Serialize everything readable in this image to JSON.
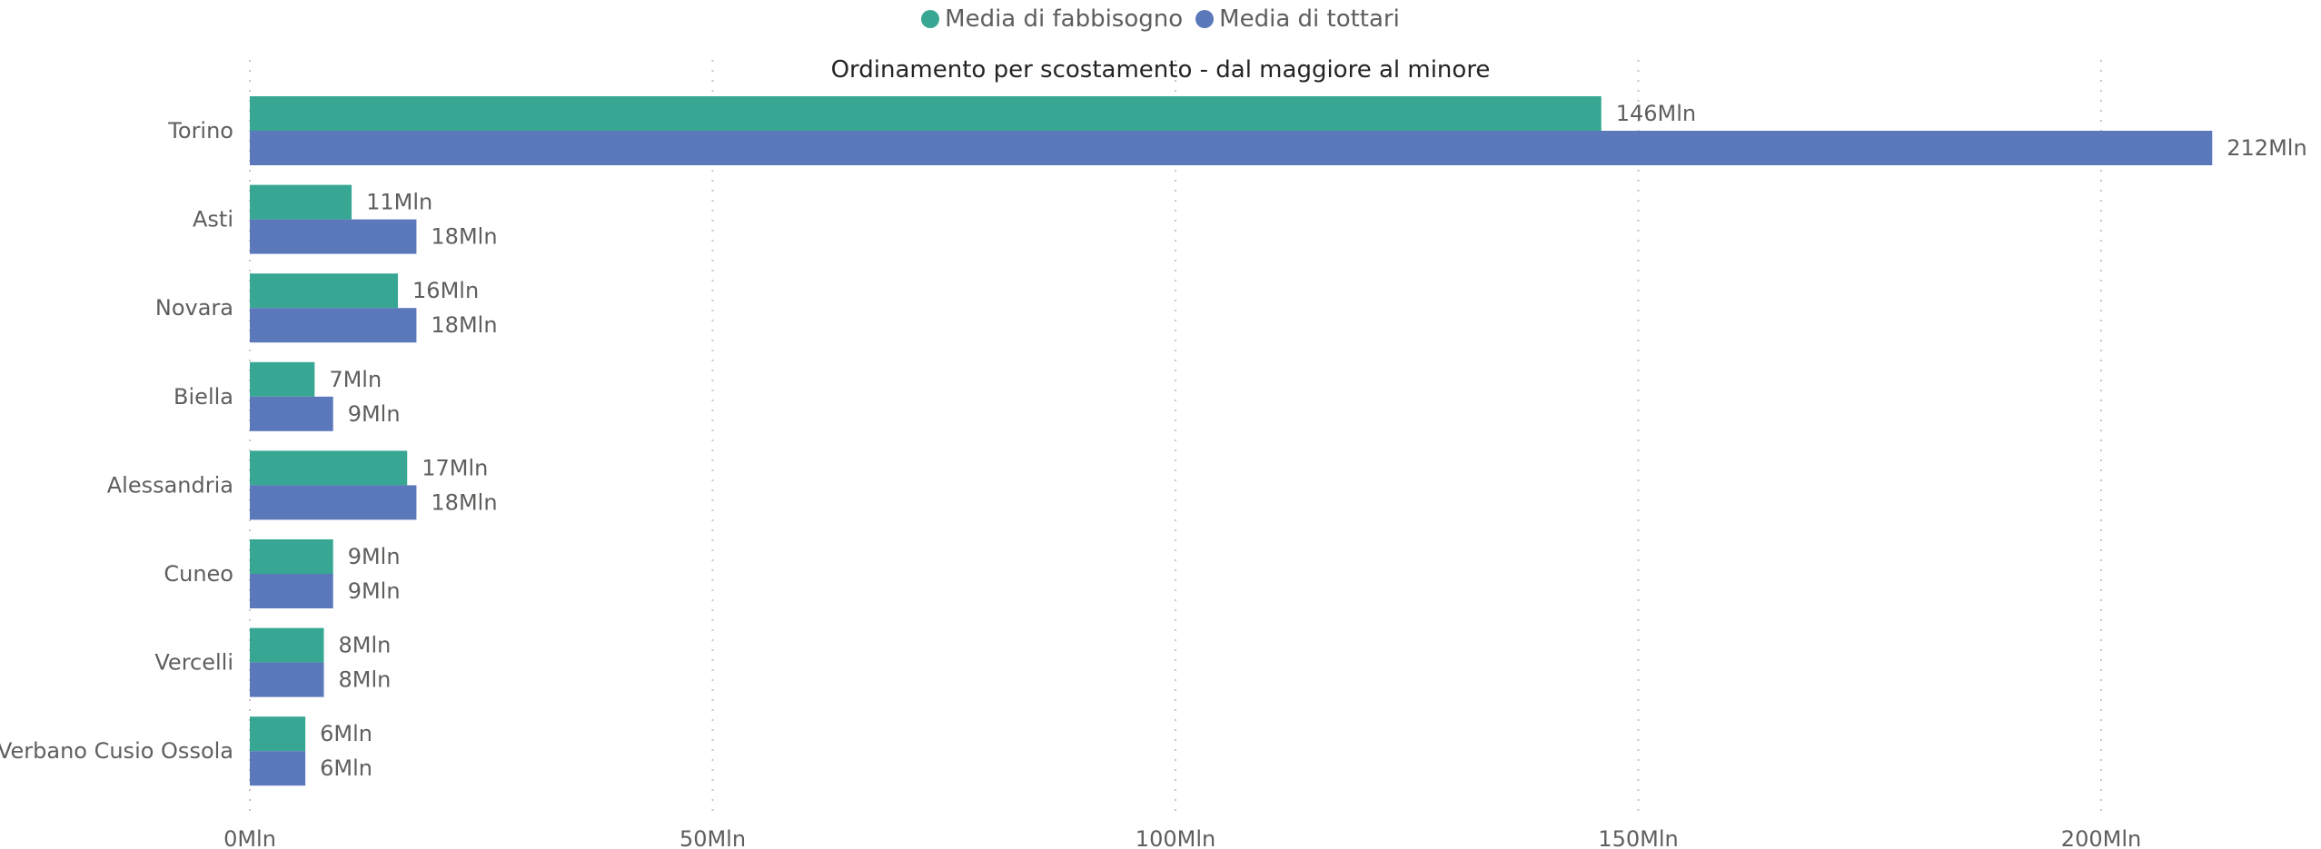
{
  "chart_data": {
    "type": "bar",
    "orientation": "horizontal",
    "title": "Ordinamento per scostamento - dal maggiore al minore",
    "categories": [
      "Torino",
      "Asti",
      "Novara",
      "Biella",
      "Alessandria",
      "Cuneo",
      "Vercelli",
      "Verbano Cusio Ossola"
    ],
    "series": [
      {
        "name": "Media di fabbisogno",
        "color": "#37a794",
        "values": [
          146,
          11,
          16,
          7,
          17,
          9,
          8,
          6
        ],
        "labels": [
          "146Mln",
          "11Mln",
          "16Mln",
          "7Mln",
          "17Mln",
          "9Mln",
          "8Mln",
          "6Mln"
        ]
      },
      {
        "name": "Media di tottari",
        "color": "#5b78bb",
        "values": [
          212,
          18,
          18,
          9,
          18,
          9,
          8,
          6
        ],
        "labels": [
          "212Mln",
          "18Mln",
          "18Mln",
          "9Mln",
          "18Mln",
          "9Mln",
          "8Mln",
          "6Mln"
        ]
      }
    ],
    "x_ticks": [
      0,
      50,
      100,
      150,
      200
    ],
    "x_tick_labels": [
      "0Mln",
      "50Mln",
      "100Mln",
      "150Mln",
      "200Mln"
    ],
    "xlim": [
      0,
      220
    ],
    "unit": "Mln",
    "grid": "vertical dotted",
    "legend": "top-center"
  }
}
